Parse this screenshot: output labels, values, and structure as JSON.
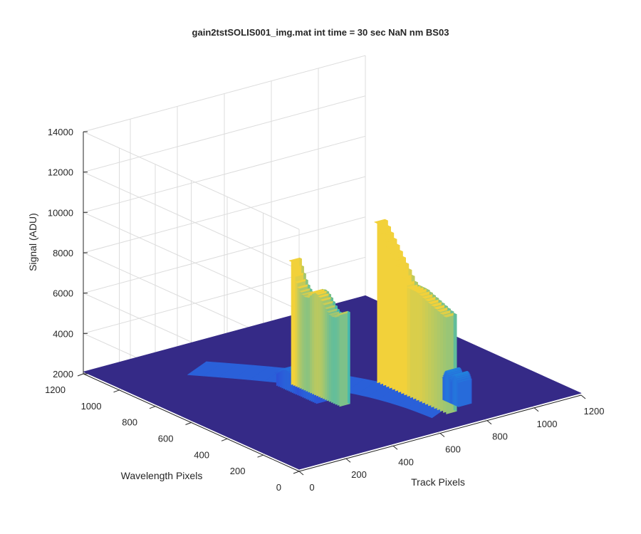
{
  "chart_data": {
    "type": "surface",
    "title": "gain2tstSOLIS001_img.mat int time = 30 sec  NaN nm BS03",
    "xlabel": "Track Pixels",
    "ylabel": "Wavelength Pixels",
    "zlabel": "Signal (ADU)",
    "xlim": [
      0,
      1200
    ],
    "ylim": [
      0,
      1200
    ],
    "zlim": [
      2000,
      14000
    ],
    "x_ticks": [
      "0",
      "200",
      "400",
      "600",
      "800",
      "1000",
      "1200"
    ],
    "y_ticks": [
      "0",
      "200",
      "400",
      "600",
      "800",
      "1000",
      "1200"
    ],
    "z_ticks": [
      "2000",
      "4000",
      "6000",
      "8000",
      "10000",
      "12000",
      "14000"
    ],
    "grid": true,
    "colormap": "parula",
    "baseline_signal": 2100,
    "colors": {
      "baseline": "#352a87",
      "low": "#2f49d6",
      "mid": "#1f8fdf",
      "cyan": "#25b5c4",
      "yellow": "#f2d13a"
    },
    "features": [
      {
        "name": "left peak",
        "track_pixel": 500,
        "wavelength_pixels": [
          400,
          680
        ],
        "peak_signal": 8200,
        "typical_signal": 6800
      },
      {
        "name": "right peak",
        "track_pixel": 740,
        "wavelength_pixels": [
          120,
          520
        ],
        "peak_signal": 10000,
        "typical_signal": 7500
      },
      {
        "name": "left shelf",
        "track_pixel": 460,
        "wavelength_pixels": [
          470,
          700
        ],
        "peak_signal": 3100,
        "typical_signal": 2700
      },
      {
        "name": "right shelf",
        "track_pixel": 820,
        "wavelength_pixels": [
          150,
          240
        ],
        "peak_signal": 3600,
        "typical_signal": 3200
      },
      {
        "name": "curved ridge",
        "signal": 2500
      }
    ]
  }
}
